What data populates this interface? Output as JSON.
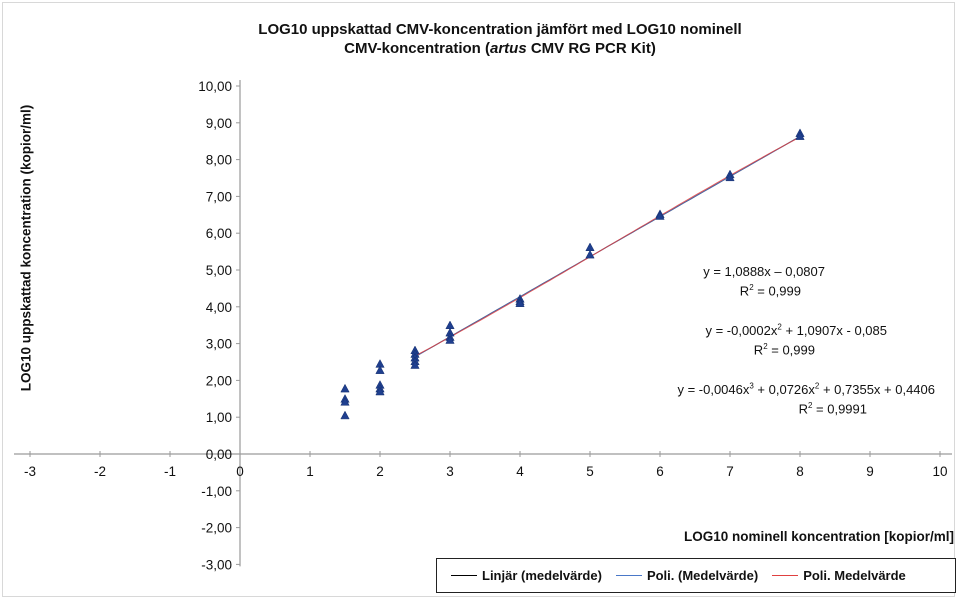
{
  "chart_data": {
    "type": "scatter",
    "title_line1": "LOG10 uppskattad CMV-koncentration jämfört med LOG10 nominell",
    "title_line2_prefix": "CMV-koncentration (",
    "title_line2_italic": "artus",
    "title_line2_suffix": " CMV RG PCR Kit)",
    "xlabel": "LOG10 nominell koncentration [kopior/ml]",
    "ylabel": "LOG10 uppskattad koncentration (kopior/ml)",
    "xlim": [
      -3,
      10
    ],
    "ylim": [
      -3,
      10
    ],
    "x_ticks": [
      "-3",
      "-2",
      "-1",
      "0",
      "1",
      "2",
      "3",
      "4",
      "5",
      "6",
      "7",
      "8",
      "9",
      "10"
    ],
    "y_ticks": [
      "-3,00",
      "-2,00",
      "-1,00",
      "0,00",
      "1,00",
      "2,00",
      "3,00",
      "4,00",
      "5,00",
      "6,00",
      "7,00",
      "8,00",
      "9,00",
      "10,00"
    ],
    "grid": false,
    "marker_color": "#1f3f8f",
    "points": [
      [
        1.5,
        1.78
      ],
      [
        1.5,
        1.5
      ],
      [
        1.5,
        1.42
      ],
      [
        1.5,
        1.05
      ],
      [
        2.0,
        2.45
      ],
      [
        2.0,
        2.28
      ],
      [
        2.0,
        1.88
      ],
      [
        2.0,
        1.78
      ],
      [
        2.0,
        1.7
      ],
      [
        2.5,
        2.82
      ],
      [
        2.5,
        2.72
      ],
      [
        2.5,
        2.62
      ],
      [
        2.5,
        2.52
      ],
      [
        2.5,
        2.42
      ],
      [
        3.0,
        3.5
      ],
      [
        3.0,
        3.3
      ],
      [
        3.0,
        3.18
      ],
      [
        3.0,
        3.1
      ],
      [
        4.0,
        4.22
      ],
      [
        4.0,
        4.15
      ],
      [
        4.0,
        4.1
      ],
      [
        5.0,
        5.62
      ],
      [
        5.0,
        5.42
      ],
      [
        6.0,
        6.52
      ],
      [
        6.0,
        6.47
      ],
      [
        7.0,
        7.6
      ],
      [
        7.0,
        7.52
      ],
      [
        8.0,
        8.72
      ],
      [
        8.0,
        8.64
      ]
    ],
    "fit_range": [
      2.5,
      8.0
    ],
    "fits": {
      "linear": {
        "coefficients": [
          -0.0807,
          1.0888
        ],
        "color": "#000000"
      },
      "poly2": {
        "coefficients": [
          -0.085,
          1.0907,
          -0.0002
        ],
        "color": "#4a78c8"
      },
      "poly3": {
        "coefficients": [
          0.4406,
          0.7355,
          0.0726,
          -0.0046
        ],
        "color": "#e04040"
      }
    },
    "equations": {
      "eq1": "y = 1,0888x – 0,0807",
      "eq1_r2_value": " = 0,999",
      "eq2_a": "y = -0,0002x",
      "eq2_b": " + 1,0907x - 0,085",
      "eq2_r2_value": " = 0,999",
      "eq3_a": "y = -0,0046x",
      "eq3_b": " + 0,0726x",
      "eq3_c": " + 0,7355x + 0,4406",
      "eq3_r2_value": " = 0,9991",
      "r2_symbol": "R",
      "sup2": "2",
      "sup3": "3"
    },
    "legend": [
      {
        "label": "Linjär (medelvärde)",
        "color": "#000000"
      },
      {
        "label": "Poli. (Medelvärde)",
        "color": "#4a78c8"
      },
      {
        "label": "Poli. Medelvärde",
        "color": "#e04040"
      }
    ],
    "legend_position": "bottom-right"
  }
}
